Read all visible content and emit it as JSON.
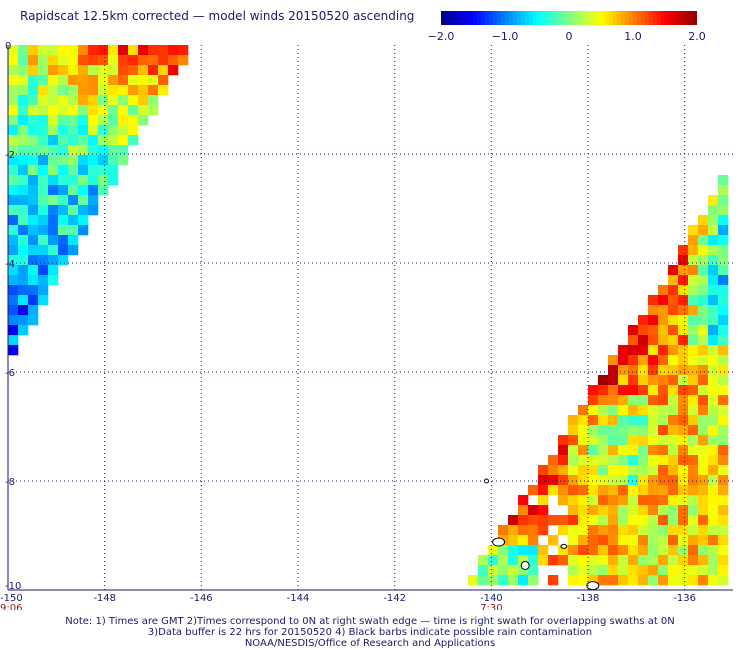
{
  "title": "Rapidscat 12.5km corrected — model winds 20150520 ascending",
  "colorbar": {
    "min": -2.0,
    "max": 2.0,
    "ticks": [
      {
        "value": -2.0,
        "label": "−2.0"
      },
      {
        "value": -1.0,
        "label": "−1.0"
      },
      {
        "value": 0,
        "label": "0"
      },
      {
        "value": 1.0,
        "label": "1.0"
      },
      {
        "value": 2.0,
        "label": "2.0"
      }
    ],
    "colors": [
      "#00008b",
      "#0000ff",
      "#0080ff",
      "#00ffff",
      "#80ff80",
      "#ffff00",
      "#ff8000",
      "#ff0000",
      "#8b0000"
    ]
  },
  "chart_data": {
    "type": "heatmap",
    "xlim": [
      -150,
      -135
    ],
    "ylim": [
      -10,
      0
    ],
    "x_ticks": [
      {
        "value": -150,
        "label": "-150"
      },
      {
        "value": -148,
        "label": "-148"
      },
      {
        "value": -146,
        "label": "-146"
      },
      {
        "value": -144,
        "label": "-144"
      },
      {
        "value": -142,
        "label": "-142"
      },
      {
        "value": -140,
        "label": "-140"
      },
      {
        "value": -138,
        "label": "-138"
      },
      {
        "value": -136,
        "label": "-136"
      }
    ],
    "y_ticks": [
      {
        "value": 0,
        "label": "0"
      },
      {
        "value": -2,
        "label": "-2"
      },
      {
        "value": -4,
        "label": "-4"
      },
      {
        "value": -6,
        "label": "-6"
      },
      {
        "value": -8,
        "label": "-8"
      },
      {
        "value": -10,
        "label": "-10"
      }
    ],
    "time_labels": [
      {
        "lon": -150,
        "label": "9:06"
      },
      {
        "lon": -140,
        "label": "7:30"
      }
    ],
    "grid": true,
    "swaths": [
      {
        "name": "west",
        "bound": [
          [
            -150,
            0
          ],
          [
            -146.2,
            0
          ],
          [
            -149.9,
            -5.7
          ],
          [
            -150,
            -5.7
          ]
        ]
      },
      {
        "name": "east",
        "bound": [
          [
            -135,
            -2.0
          ],
          [
            -135,
            -10
          ],
          [
            -140.6,
            -10
          ],
          [
            -136.2,
            -4.0
          ]
        ]
      }
    ]
  },
  "footer": {
    "line1": "Note: 1) Times are GMT 2)Times correspond to 0N at right swath edge — time is right swath for overlapping swaths at 0N",
    "line2": "3)Data buffer is 22 hrs for 20150520 4) Black barbs indicate possible rain contamination",
    "line3": "NOAA/NESDIS/Office of Research and Applications"
  }
}
